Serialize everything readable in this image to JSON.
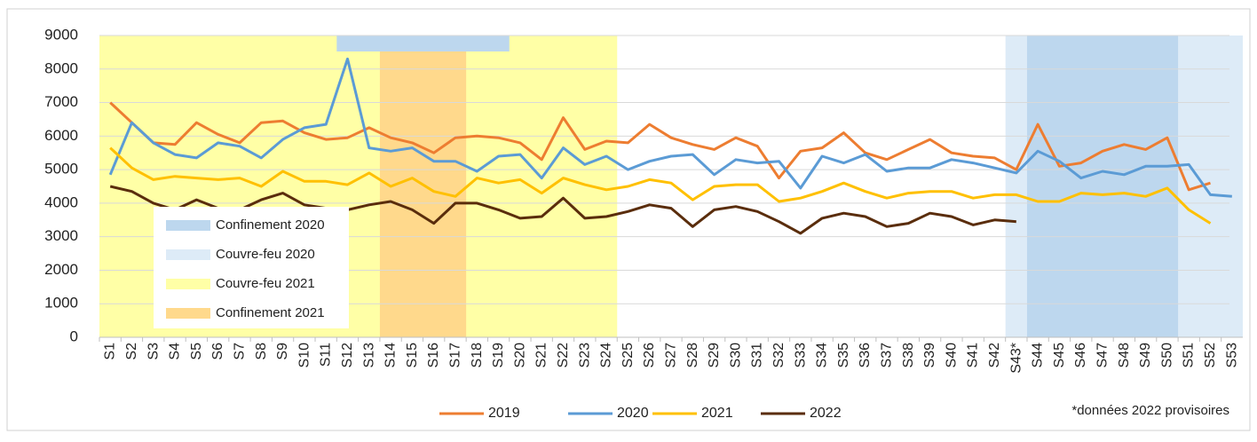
{
  "chart_data": {
    "type": "line",
    "categories": [
      "S1",
      "S2",
      "S3",
      "S4",
      "S5",
      "S6",
      "S7",
      "S8",
      "S9",
      "S10",
      "S11",
      "S12",
      "S13",
      "S14",
      "S15",
      "S16",
      "S17",
      "S18",
      "S19",
      "S20",
      "S21",
      "S22",
      "S23",
      "S24",
      "S25",
      "S26",
      "S27",
      "S28",
      "S29",
      "S30",
      "S31",
      "S32",
      "S33",
      "S34",
      "S35",
      "S36",
      "S37",
      "S38",
      "S39",
      "S40",
      "S41",
      "S42",
      "S43*",
      "S44",
      "S45",
      "S46",
      "S47",
      "S48",
      "S49",
      "S50",
      "S51",
      "S52",
      "S53"
    ],
    "series": [
      {
        "name": "2019",
        "color": "#ED7D31",
        "values": [
          7000,
          6400,
          5800,
          5750,
          6400,
          6050,
          5800,
          6400,
          6450,
          6100,
          5900,
          5950,
          6250,
          5950,
          5800,
          5500,
          5950,
          6000,
          5950,
          5800,
          5300,
          6550,
          5600,
          5850,
          5800,
          6350,
          5950,
          5750,
          5600,
          5950,
          5700,
          4750,
          5550,
          5650,
          6100,
          5500,
          5300,
          5600,
          5900,
          5500,
          5400,
          5350,
          5000,
          6350,
          5100,
          5200,
          5550,
          5750,
          5600,
          5950,
          4400,
          4600,
          null
        ]
      },
      {
        "name": "2020",
        "color": "#5B9BD5",
        "values": [
          4850,
          6400,
          5800,
          5450,
          5350,
          5800,
          5700,
          5350,
          5900,
          6250,
          6350,
          8300,
          5650,
          5550,
          5650,
          5250,
          5250,
          4950,
          5400,
          5450,
          4750,
          5650,
          5150,
          5400,
          5000,
          5250,
          5400,
          5450,
          4850,
          5300,
          5200,
          5250,
          4450,
          5400,
          5200,
          5450,
          4950,
          5050,
          5050,
          5300,
          5200,
          5050,
          4900,
          5550,
          5250,
          4750,
          4950,
          4850,
          5100,
          5100,
          5150,
          4250,
          4200
        ]
      },
      {
        "name": "2021",
        "color": "#FFC000",
        "values": [
          5650,
          5050,
          4700,
          4800,
          4750,
          4700,
          4750,
          4500,
          4950,
          4650,
          4650,
          4550,
          4900,
          4500,
          4750,
          4350,
          4200,
          4750,
          4600,
          4700,
          4300,
          4750,
          4550,
          4400,
          4500,
          4700,
          4600,
          4100,
          4500,
          4550,
          4550,
          4050,
          4150,
          4350,
          4600,
          4350,
          4150,
          4300,
          4350,
          4350,
          4150,
          4250,
          4250,
          4050,
          4050,
          4300,
          4250,
          4300,
          4200,
          4450,
          3800,
          3400,
          null
        ]
      },
      {
        "name": "2022",
        "color": "#5A2D0C",
        "values": [
          4500,
          4350,
          4000,
          3800,
          4100,
          3850,
          3800,
          4100,
          4300,
          3950,
          3850,
          3800,
          3950,
          4050,
          3800,
          3400,
          4000,
          4000,
          3800,
          3550,
          3600,
          4150,
          3550,
          3600,
          3750,
          3950,
          3850,
          3300,
          3800,
          3900,
          3750,
          3450,
          3100,
          3550,
          3700,
          3600,
          3300,
          3400,
          3700,
          3600,
          3350,
          3500,
          3450,
          null,
          null,
          null,
          null,
          null,
          null,
          null,
          null,
          null,
          null
        ]
      }
    ],
    "regions": [
      {
        "name": "Confinement 2020",
        "color": "#BDD7EE",
        "ranges": [
          {
            "start": 12,
            "end": 19,
            "strip": true
          },
          {
            "start": 44,
            "end": 50
          }
        ]
      },
      {
        "name": "Couvre-feu 2020",
        "color": "#DDEBF7",
        "ranges": [
          {
            "start": 43,
            "end": 53
          }
        ]
      },
      {
        "name": "Couvre-feu 2021",
        "color": "#FFFFA6",
        "ranges": [
          {
            "start": 1,
            "end": 24
          }
        ]
      },
      {
        "name": "Confinement 2021",
        "color": "#FFD98C",
        "ranges": [
          {
            "start": 14,
            "end": 17
          }
        ]
      }
    ],
    "ylim": [
      0,
      9000
    ],
    "yticks": [
      0,
      1000,
      2000,
      3000,
      4000,
      5000,
      6000,
      7000,
      8000,
      9000
    ],
    "grid": true,
    "footnote": "*données 2022 provisoires"
  }
}
